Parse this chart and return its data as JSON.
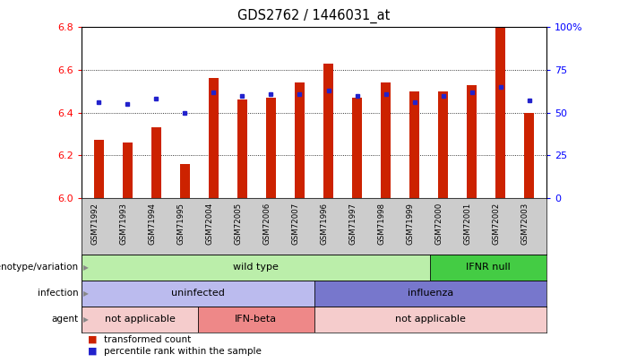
{
  "title": "GDS2762 / 1446031_at",
  "samples": [
    "GSM71992",
    "GSM71993",
    "GSM71994",
    "GSM71995",
    "GSM72004",
    "GSM72005",
    "GSM72006",
    "GSM72007",
    "GSM71996",
    "GSM71997",
    "GSM71998",
    "GSM71999",
    "GSM72000",
    "GSM72001",
    "GSM72002",
    "GSM72003"
  ],
  "transformed_count": [
    6.27,
    6.26,
    6.33,
    6.16,
    6.56,
    6.46,
    6.47,
    6.54,
    6.63,
    6.47,
    6.54,
    6.5,
    6.5,
    6.53,
    6.8,
    6.4
  ],
  "percentile_rank": [
    56,
    55,
    58,
    50,
    62,
    60,
    61,
    61,
    63,
    60,
    61,
    56,
    60,
    62,
    65,
    57
  ],
  "ylim_left": [
    6.0,
    6.8
  ],
  "ylim_right": [
    0,
    100
  ],
  "yticks_left": [
    6.0,
    6.2,
    6.4,
    6.6,
    6.8
  ],
  "yticks_right": [
    0,
    25,
    50,
    75,
    100
  ],
  "ytick_labels_right": [
    "0",
    "25",
    "50",
    "75",
    "100%"
  ],
  "bar_color": "#cc2200",
  "dot_color": "#2222cc",
  "chart_bg": "#ffffff",
  "xtick_bg": "#cccccc",
  "annotation_rows": [
    {
      "label": "genotype/variation",
      "segments": [
        {
          "text": "wild type",
          "start": 0,
          "end": 12,
          "color": "#bbeeaa"
        },
        {
          "text": "IFNR null",
          "start": 12,
          "end": 16,
          "color": "#44cc44"
        }
      ]
    },
    {
      "label": "infection",
      "segments": [
        {
          "text": "uninfected",
          "start": 0,
          "end": 8,
          "color": "#bbbbee"
        },
        {
          "text": "influenza",
          "start": 8,
          "end": 16,
          "color": "#7777cc"
        }
      ]
    },
    {
      "label": "agent",
      "segments": [
        {
          "text": "not applicable",
          "start": 0,
          "end": 4,
          "color": "#f5cccc"
        },
        {
          "text": "IFN-beta",
          "start": 4,
          "end": 8,
          "color": "#ee8888"
        },
        {
          "text": "not applicable",
          "start": 8,
          "end": 16,
          "color": "#f5cccc"
        }
      ]
    }
  ],
  "legend_items": [
    {
      "label": "transformed count",
      "color": "#cc2200"
    },
    {
      "label": "percentile rank within the sample",
      "color": "#2222cc"
    }
  ]
}
